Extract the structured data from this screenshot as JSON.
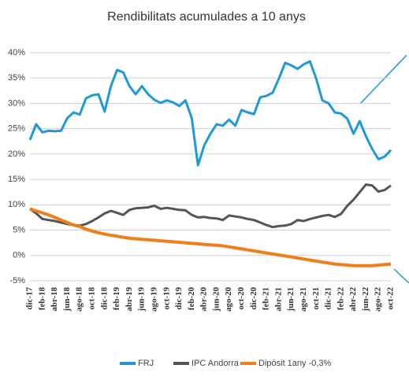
{
  "chart_data": {
    "type": "line",
    "title": "Rendibilitats acumulades a 10 anys",
    "categories": [
      "dic-17",
      null,
      "feb-18",
      null,
      "abr-18",
      null,
      "jun-18",
      null,
      "ago-18",
      null,
      "oct-18",
      null,
      "dic-18",
      null,
      "feb-19",
      null,
      "abr-19",
      null,
      "jun-19",
      null,
      "ago-19",
      null,
      "oct-19",
      null,
      "dic-19",
      null,
      "feb-20",
      null,
      "abr-20",
      null,
      "jun-20",
      null,
      "ago-20",
      null,
      "oct-20",
      null,
      "dic-20",
      null,
      "feb-21",
      null,
      "abr-21",
      null,
      "jun-21",
      null,
      "ago-21",
      null,
      "oct-21",
      null,
      "dic-21",
      null,
      "feb-22",
      null,
      "abr-22",
      null,
      "jun-22",
      null,
      "ago-22",
      null,
      "oct-22"
    ],
    "series": [
      {
        "name": "FRJ",
        "color": "#1f9ad6",
        "values": [
          22.8,
          25.9,
          24.3,
          24.6,
          24.5,
          24.6,
          27.1,
          28.2,
          27.8,
          31,
          31.6,
          31.8,
          28.4,
          33.4,
          36.6,
          36.1,
          33.4,
          31.8,
          33.4,
          31.8,
          30.7,
          30.1,
          30.6,
          30.2,
          29.5,
          30.6,
          27.1,
          17.8,
          21.7,
          24,
          25.9,
          25.6,
          26.8,
          25.6,
          28.7,
          28.2,
          27.9,
          31.2,
          31.5,
          32.1,
          34.9,
          38,
          37.5,
          36.8,
          37.7,
          38.3,
          34.9,
          30.6,
          30,
          28.2,
          28,
          27,
          24,
          26.5,
          23.5,
          21,
          19,
          19.5,
          20.8
        ]
      },
      {
        "name": "IPC Andorra",
        "color": "#555555",
        "values": [
          9.2,
          8.3,
          7.2,
          7.0,
          6.8,
          6.5,
          6.2,
          6.0,
          5.9,
          6.2,
          6.8,
          7.5,
          8.3,
          8.8,
          8.4,
          8.0,
          9.0,
          9.3,
          9.4,
          9.5,
          9.8,
          9.2,
          9.4,
          9.2,
          9.0,
          8.9,
          8.0,
          7.5,
          7.6,
          7.4,
          7.3,
          7.0,
          7.9,
          7.7,
          7.5,
          7.2,
          7.0,
          6.5,
          6.0,
          5.6,
          5.8,
          5.9,
          6.2,
          7.0,
          6.8,
          7.2,
          7.5,
          7.8,
          8.0,
          7.6,
          8.2,
          9.8,
          11.0,
          12.5,
          14.0,
          13.8,
          12.6,
          12.9,
          13.8
        ]
      },
      {
        "name": "Dipòsit 1any -0,3%",
        "color": "#f07f1a",
        "values": [
          9.2,
          8.8,
          8.4,
          8.0,
          7.5,
          7.0,
          6.5,
          6.0,
          5.7,
          5.2,
          4.8,
          4.5,
          4.2,
          4.0,
          3.8,
          3.6,
          3.4,
          3.3,
          3.2,
          3.1,
          3.0,
          2.9,
          2.8,
          2.7,
          2.6,
          2.5,
          2.4,
          2.3,
          2.2,
          2.1,
          2.0,
          1.9,
          1.7,
          1.5,
          1.3,
          1.1,
          0.9,
          0.7,
          0.5,
          0.3,
          0.1,
          -0.1,
          -0.3,
          -0.5,
          -0.7,
          -0.9,
          -1.1,
          -1.3,
          -1.5,
          -1.7,
          -1.8,
          -1.9,
          -2.0,
          -2.0,
          -2.0,
          -2.0,
          -1.9,
          -1.8,
          -1.7
        ]
      }
    ],
    "ylim": [
      -5,
      40
    ],
    "yticks": [
      {
        "value": -5,
        "label": "-5%"
      },
      {
        "value": 0,
        "label": "0%"
      },
      {
        "value": 5,
        "label": "5%"
      },
      {
        "value": 10,
        "label": "10%"
      },
      {
        "value": 15,
        "label": "15%"
      },
      {
        "value": 20,
        "label": "20%"
      },
      {
        "value": 25,
        "label": "25%"
      },
      {
        "value": 30,
        "label": "30%"
      },
      {
        "value": 35,
        "label": "35%"
      },
      {
        "value": 40,
        "label": "40%"
      }
    ],
    "grid": true,
    "legend": "bottom"
  }
}
